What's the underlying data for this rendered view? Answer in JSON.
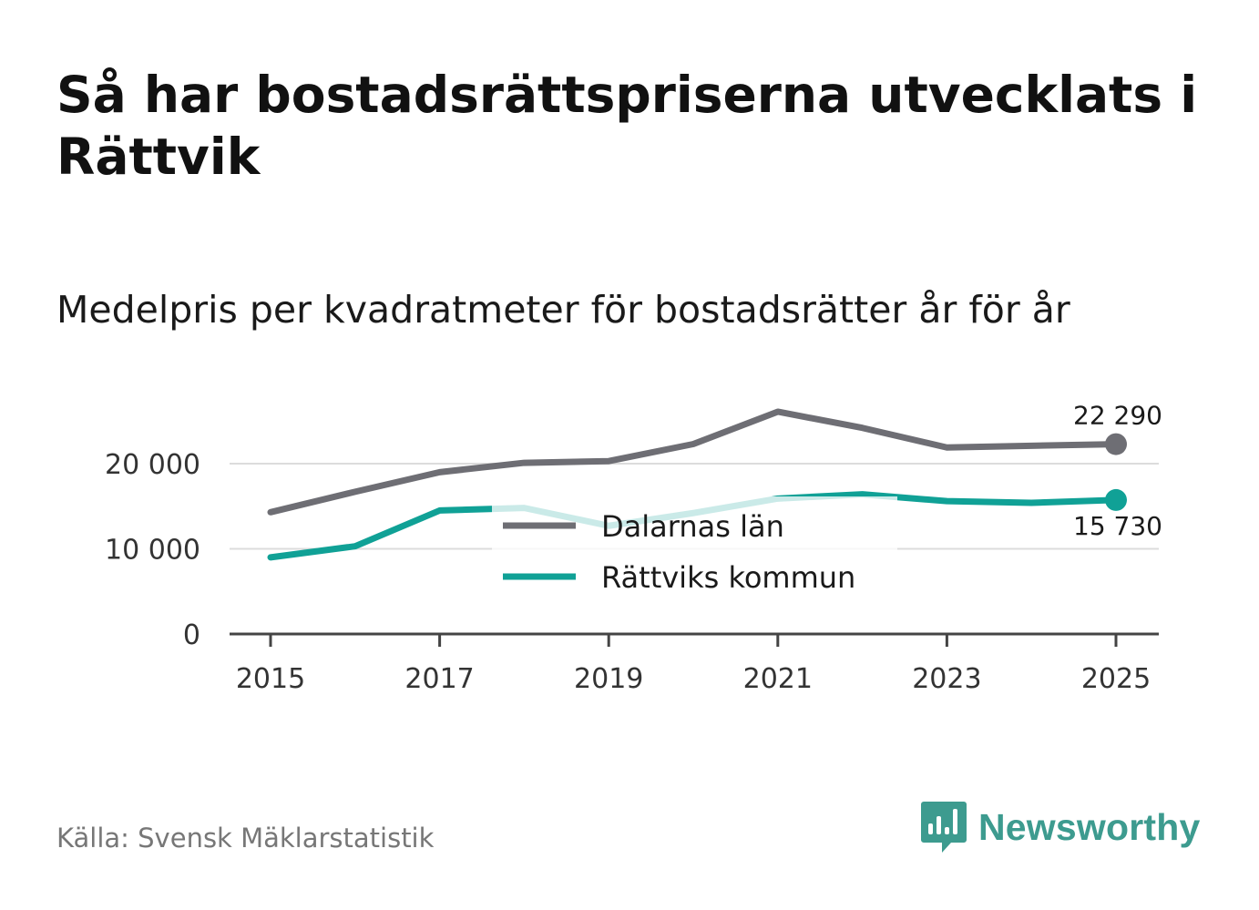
{
  "title": "Så har bostadsrättspriserna utvecklats i Rättvik",
  "subtitle": "Medelpris per kvadratmeter för bostadsrätter år för år",
  "source": "Källa: Svensk Mäklarstatistik",
  "brand": {
    "name": "Newsworthy",
    "color": "#3d9b8f",
    "icon": "bar-chart-speech-bubble-icon"
  },
  "chart_data": {
    "type": "line",
    "title": "Så har bostadsrättspriserna utvecklats i Rättvik",
    "subtitle": "Medelpris per kvadratmeter för bostadsrätter år för år",
    "xlabel": "",
    "ylabel": "",
    "x": [
      2015,
      2016,
      2017,
      2018,
      2019,
      2020,
      2021,
      2022,
      2023,
      2024,
      2025
    ],
    "x_ticks": [
      2015,
      2017,
      2019,
      2021,
      2023,
      2025
    ],
    "x_tick_labels": [
      "2015",
      "2017",
      "2019",
      "2021",
      "2023",
      "2025"
    ],
    "ylim": [
      0,
      20000
    ],
    "y_ticks": [
      0,
      10000,
      20000
    ],
    "y_tick_labels": [
      "0",
      "10 000",
      "20 000"
    ],
    "grid": true,
    "legend": {
      "placement": "center",
      "items": [
        "Dalarnas län",
        "Rättviks kommun"
      ]
    },
    "series": [
      {
        "name": "Dalarnas län",
        "color": "#6e6e74",
        "values": [
          14300,
          16700,
          19000,
          20100,
          20300,
          22300,
          26100,
          24200,
          21900,
          22100,
          22290
        ],
        "end_label": "22 290"
      },
      {
        "name": "Rättviks kommun",
        "color": "#10a196",
        "values": [
          9000,
          10300,
          14500,
          14800,
          12700,
          14200,
          15900,
          16400,
          15600,
          15400,
          15730
        ],
        "end_label": "15 730"
      }
    ]
  }
}
